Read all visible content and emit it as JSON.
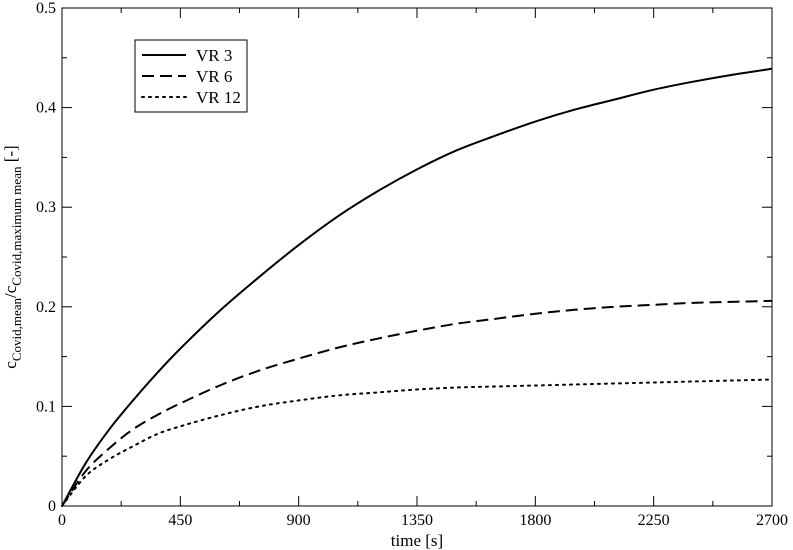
{
  "chart_data": {
    "type": "line",
    "title": "",
    "xlabel": "time [s]",
    "ylabel_parts": {
      "c1": "c",
      "sub1": "Covid,mean",
      "slash": "/c",
      "sub2": "Covid,maximum mean",
      "unit": " [-]"
    },
    "xlim": [
      0,
      2700
    ],
    "ylim": [
      0,
      0.5
    ],
    "x_ticks": [
      0,
      450,
      900,
      1350,
      1800,
      2250,
      2700
    ],
    "y_ticks": [
      0,
      0.1,
      0.2,
      0.3,
      0.4,
      0.5
    ],
    "x_tick_labels": [
      "0",
      "450",
      "900",
      "1350",
      "1800",
      "2250",
      "2700"
    ],
    "y_tick_labels": [
      "0",
      "0.1",
      "0.2",
      "0.3",
      "0.4",
      "0.5"
    ],
    "grid": false,
    "legend_position": "top-left",
    "series": [
      {
        "name": "VR 3",
        "style": "solid",
        "x": [
          0,
          90,
          180,
          270,
          360,
          450,
          600,
          750,
          900,
          1050,
          1200,
          1350,
          1500,
          1650,
          1800,
          1950,
          2100,
          2250,
          2400,
          2550,
          2700
        ],
        "y": [
          0,
          0.043,
          0.077,
          0.106,
          0.133,
          0.158,
          0.196,
          0.23,
          0.262,
          0.291,
          0.316,
          0.338,
          0.357,
          0.372,
          0.386,
          0.398,
          0.408,
          0.418,
          0.426,
          0.433,
          0.439
        ]
      },
      {
        "name": "VR 6",
        "style": "dashed",
        "x": [
          0,
          90,
          180,
          270,
          360,
          450,
          600,
          750,
          900,
          1050,
          1200,
          1350,
          1500,
          1650,
          1800,
          1950,
          2100,
          2250,
          2400,
          2550,
          2700
        ],
        "y": [
          0,
          0.035,
          0.058,
          0.077,
          0.091,
          0.103,
          0.121,
          0.136,
          0.148,
          0.159,
          0.168,
          0.176,
          0.183,
          0.188,
          0.193,
          0.197,
          0.2,
          0.202,
          0.204,
          0.205,
          0.206
        ]
      },
      {
        "name": "VR 12",
        "style": "dotted",
        "x": [
          0,
          90,
          180,
          270,
          360,
          450,
          600,
          750,
          900,
          1050,
          1200,
          1350,
          1500,
          1650,
          1800,
          1950,
          2100,
          2250,
          2400,
          2550,
          2700
        ],
        "y": [
          0,
          0.03,
          0.047,
          0.06,
          0.072,
          0.08,
          0.091,
          0.1,
          0.106,
          0.111,
          0.114,
          0.117,
          0.119,
          0.12,
          0.121,
          0.122,
          0.123,
          0.124,
          0.125,
          0.126,
          0.127
        ]
      }
    ]
  }
}
